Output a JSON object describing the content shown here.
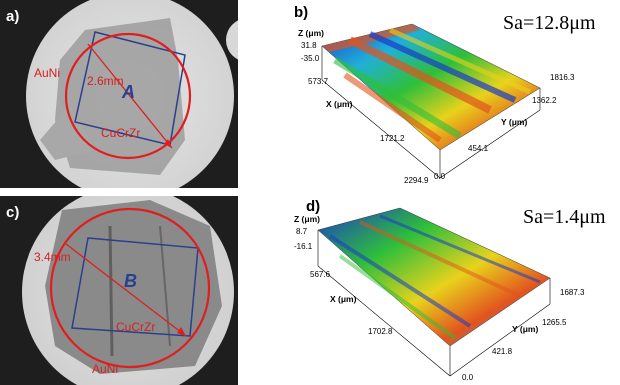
{
  "panels": {
    "a": {
      "label": "a)",
      "region_outer": "AuNi",
      "region_inner": "CuCrZr",
      "dimension": "2.6mm",
      "area": "A"
    },
    "b": {
      "label": "b)",
      "roughness": "Sa=12.8μm",
      "axis_z": "Z (μm)",
      "axis_x": "X (μm)",
      "axis_y": "Y (μm)",
      "ticks": {
        "z_top": "31.8",
        "z_bottom": "-35.0",
        "x1": "573.7",
        "x2": "1721.2",
        "x3": "2294.9",
        "y1": "1816.3",
        "y2": "1362.2",
        "y3": "454.1",
        "origin": "0.0"
      }
    },
    "c": {
      "label": "c)",
      "region_outer": "AuNi",
      "region_inner": "CuCrZr",
      "dimension": "3.4mm",
      "area": "B"
    },
    "d": {
      "label": "d)",
      "roughness": "Sa=1.4μm",
      "axis_z": "Z (μm)",
      "axis_x": "X (μm)",
      "axis_y": "Y (μm)",
      "ticks": {
        "z_top": "8.7",
        "z_bottom": "-16.1",
        "x1": "567.6",
        "x2": "1702.8",
        "y1": "1687.3",
        "y2": "1265.5",
        "y3": "421.8",
        "origin": "0.0"
      }
    }
  },
  "colors": {
    "accent_red": "#e01e1e",
    "rect_blue": "#2b3f8c"
  }
}
